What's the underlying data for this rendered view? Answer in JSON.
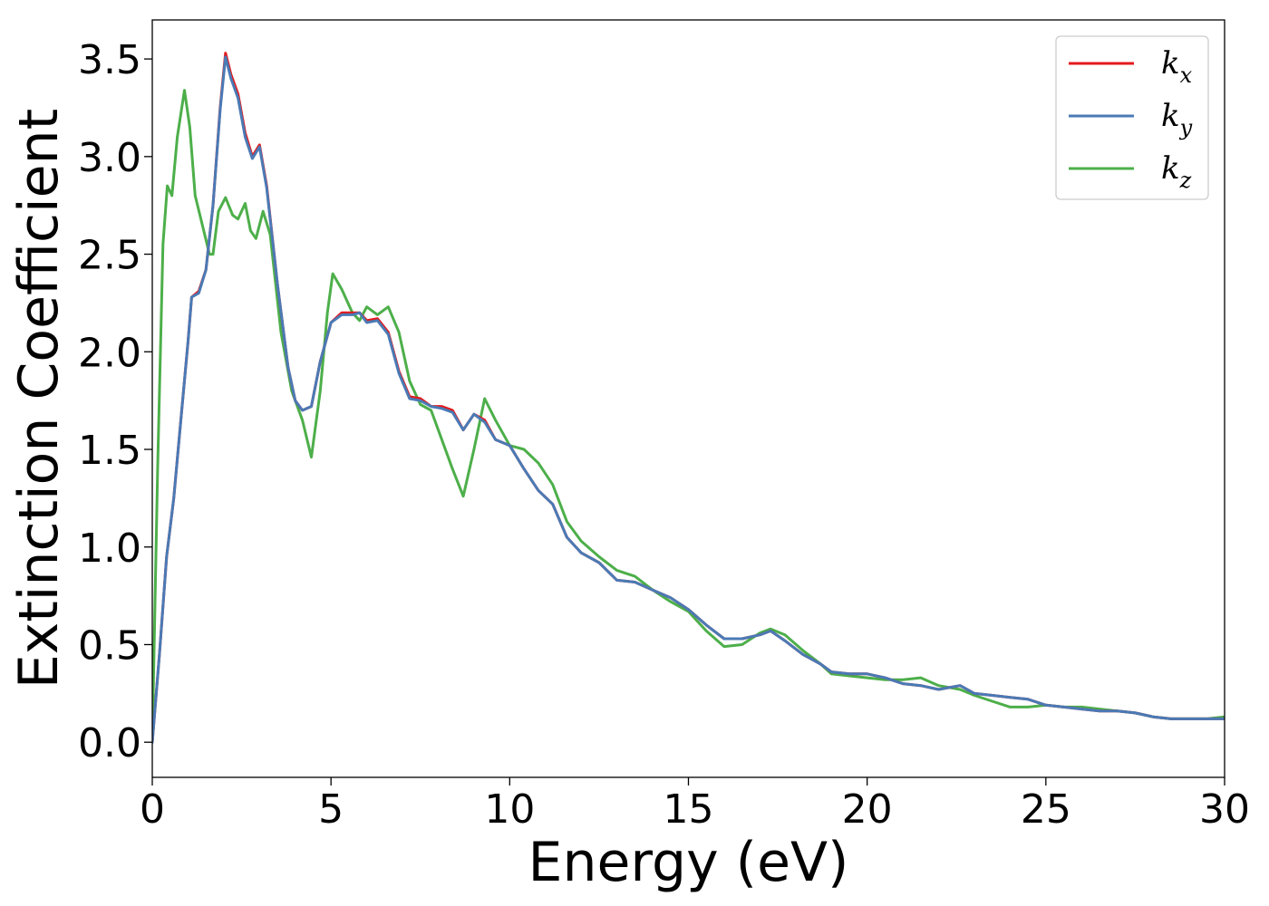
{
  "chart_data": {
    "type": "line",
    "xlabel": "Energy (eV)",
    "ylabel": "Extinction Coefficient",
    "xlim": [
      0,
      30
    ],
    "ylim": [
      -0.18,
      3.7
    ],
    "xticks": [
      0,
      5,
      10,
      15,
      20,
      25,
      30
    ],
    "xtick_labels": [
      "0",
      "5",
      "10",
      "15",
      "20",
      "25",
      "30"
    ],
    "yticks": [
      0.0,
      0.5,
      1.0,
      1.5,
      2.0,
      2.5,
      3.0,
      3.5
    ],
    "ytick_labels": [
      "0.0",
      "0.5",
      "1.0",
      "1.5",
      "2.0",
      "2.5",
      "3.0",
      "3.5"
    ],
    "grid": false,
    "legend_position": "top-right",
    "series": [
      {
        "name": "k",
        "subscript": "x",
        "color": "#e41a1c",
        "x": [
          0,
          0.2,
          0.4,
          0.6,
          0.8,
          1.0,
          1.1,
          1.3,
          1.5,
          1.7,
          1.9,
          2.05,
          2.2,
          2.4,
          2.6,
          2.8,
          3.0,
          3.2,
          3.5,
          3.8,
          4.0,
          4.2,
          4.45,
          4.7,
          5.0,
          5.3,
          5.6,
          5.8,
          6.0,
          6.3,
          6.6,
          6.9,
          7.2,
          7.5,
          7.8,
          8.1,
          8.4,
          8.7,
          9.0,
          9.3,
          9.6,
          10.0,
          10.4,
          10.8,
          11.2,
          11.6,
          12.0,
          12.5,
          13.0,
          13.5,
          14.0,
          14.5,
          15.0,
          15.5,
          16.0,
          16.5,
          17.0,
          17.3,
          17.7,
          18.2,
          18.7,
          19.0,
          19.5,
          20.0,
          20.5,
          21.0,
          21.5,
          22.0,
          22.6,
          23.0,
          23.5,
          24.0,
          24.5,
          25.0,
          25.5,
          26.0,
          26.5,
          27.0,
          27.5,
          28.0,
          28.5,
          29.0,
          29.5,
          30.0
        ],
        "values": [
          0.0,
          0.45,
          0.95,
          1.25,
          1.65,
          2.05,
          2.28,
          2.31,
          2.42,
          2.75,
          3.25,
          3.53,
          3.42,
          3.32,
          3.12,
          3.0,
          3.06,
          2.85,
          2.35,
          1.92,
          1.75,
          1.7,
          1.72,
          1.95,
          2.15,
          2.2,
          2.2,
          2.2,
          2.16,
          2.17,
          2.1,
          1.9,
          1.77,
          1.76,
          1.72,
          1.72,
          1.7,
          1.6,
          1.68,
          1.65,
          1.55,
          1.52,
          1.4,
          1.29,
          1.22,
          1.05,
          0.97,
          0.92,
          0.83,
          0.82,
          0.78,
          0.74,
          0.68,
          0.6,
          0.53,
          0.53,
          0.55,
          0.57,
          0.52,
          0.45,
          0.4,
          0.36,
          0.35,
          0.35,
          0.33,
          0.3,
          0.29,
          0.27,
          0.29,
          0.25,
          0.24,
          0.23,
          0.22,
          0.19,
          0.18,
          0.17,
          0.16,
          0.16,
          0.15,
          0.13,
          0.12,
          0.12,
          0.12,
          0.12
        ]
      },
      {
        "name": "k",
        "subscript": "y",
        "color": "#4a7ab5",
        "x": [
          0,
          0.2,
          0.4,
          0.6,
          0.8,
          1.0,
          1.1,
          1.3,
          1.5,
          1.7,
          1.9,
          2.05,
          2.2,
          2.4,
          2.6,
          2.8,
          3.0,
          3.2,
          3.5,
          3.8,
          4.0,
          4.2,
          4.45,
          4.7,
          5.0,
          5.3,
          5.6,
          5.8,
          6.0,
          6.3,
          6.6,
          6.9,
          7.2,
          7.5,
          7.8,
          8.1,
          8.4,
          8.7,
          9.0,
          9.3,
          9.6,
          10.0,
          10.4,
          10.8,
          11.2,
          11.6,
          12.0,
          12.5,
          13.0,
          13.5,
          14.0,
          14.5,
          15.0,
          15.5,
          16.0,
          16.5,
          17.0,
          17.3,
          17.7,
          18.2,
          18.7,
          19.0,
          19.5,
          20.0,
          20.5,
          21.0,
          21.5,
          22.0,
          22.6,
          23.0,
          23.5,
          24.0,
          24.5,
          25.0,
          25.5,
          26.0,
          26.5,
          27.0,
          27.5,
          28.0,
          28.5,
          29.0,
          29.5,
          30.0
        ],
        "values": [
          0.0,
          0.45,
          0.95,
          1.25,
          1.65,
          2.05,
          2.28,
          2.3,
          2.42,
          2.75,
          3.24,
          3.51,
          3.4,
          3.3,
          3.1,
          2.99,
          3.05,
          2.84,
          2.35,
          1.92,
          1.75,
          1.7,
          1.72,
          1.95,
          2.15,
          2.19,
          2.19,
          2.2,
          2.15,
          2.16,
          2.09,
          1.89,
          1.76,
          1.75,
          1.72,
          1.71,
          1.69,
          1.6,
          1.68,
          1.64,
          1.55,
          1.52,
          1.4,
          1.29,
          1.22,
          1.05,
          0.97,
          0.92,
          0.83,
          0.82,
          0.78,
          0.74,
          0.68,
          0.6,
          0.53,
          0.53,
          0.55,
          0.57,
          0.52,
          0.45,
          0.4,
          0.36,
          0.35,
          0.35,
          0.33,
          0.3,
          0.29,
          0.27,
          0.29,
          0.25,
          0.24,
          0.23,
          0.22,
          0.19,
          0.18,
          0.17,
          0.16,
          0.16,
          0.15,
          0.13,
          0.12,
          0.12,
          0.12,
          0.12
        ]
      },
      {
        "name": "k",
        "subscript": "z",
        "color": "#4daf4a",
        "x": [
          0,
          0.15,
          0.3,
          0.42,
          0.55,
          0.7,
          0.9,
          1.05,
          1.2,
          1.4,
          1.6,
          1.7,
          1.85,
          2.05,
          2.25,
          2.4,
          2.6,
          2.75,
          2.9,
          3.1,
          3.3,
          3.6,
          3.9,
          4.2,
          4.45,
          4.7,
          4.9,
          5.05,
          5.3,
          5.6,
          5.8,
          6.0,
          6.3,
          6.6,
          6.9,
          7.2,
          7.5,
          7.8,
          8.1,
          8.4,
          8.7,
          9.0,
          9.3,
          9.6,
          10.0,
          10.4,
          10.8,
          11.2,
          11.6,
          12.0,
          12.5,
          13.0,
          13.5,
          14.0,
          14.5,
          15.0,
          15.5,
          16.0,
          16.5,
          17.0,
          17.3,
          17.7,
          18.2,
          18.7,
          19.0,
          19.5,
          20.0,
          20.5,
          21.0,
          21.5,
          22.0,
          22.6,
          23.0,
          23.5,
          24.0,
          24.5,
          25.0,
          25.5,
          26.0,
          26.5,
          27.0,
          27.5,
          28.0,
          28.5,
          29.0,
          29.5,
          30.0
        ],
        "values": [
          0.0,
          1.4,
          2.55,
          2.85,
          2.8,
          3.1,
          3.34,
          3.15,
          2.8,
          2.65,
          2.5,
          2.5,
          2.72,
          2.79,
          2.7,
          2.68,
          2.76,
          2.62,
          2.58,
          2.72,
          2.6,
          2.1,
          1.8,
          1.65,
          1.46,
          1.8,
          2.2,
          2.4,
          2.32,
          2.2,
          2.16,
          2.23,
          2.19,
          2.23,
          2.1,
          1.85,
          1.73,
          1.7,
          1.55,
          1.4,
          1.26,
          1.5,
          1.76,
          1.65,
          1.52,
          1.5,
          1.43,
          1.32,
          1.13,
          1.03,
          0.95,
          0.88,
          0.85,
          0.78,
          0.72,
          0.67,
          0.57,
          0.49,
          0.5,
          0.56,
          0.58,
          0.55,
          0.47,
          0.4,
          0.35,
          0.34,
          0.33,
          0.32,
          0.32,
          0.33,
          0.29,
          0.27,
          0.24,
          0.21,
          0.18,
          0.18,
          0.19,
          0.18,
          0.18,
          0.17,
          0.16,
          0.15,
          0.13,
          0.12,
          0.12,
          0.12,
          0.13
        ]
      }
    ]
  }
}
